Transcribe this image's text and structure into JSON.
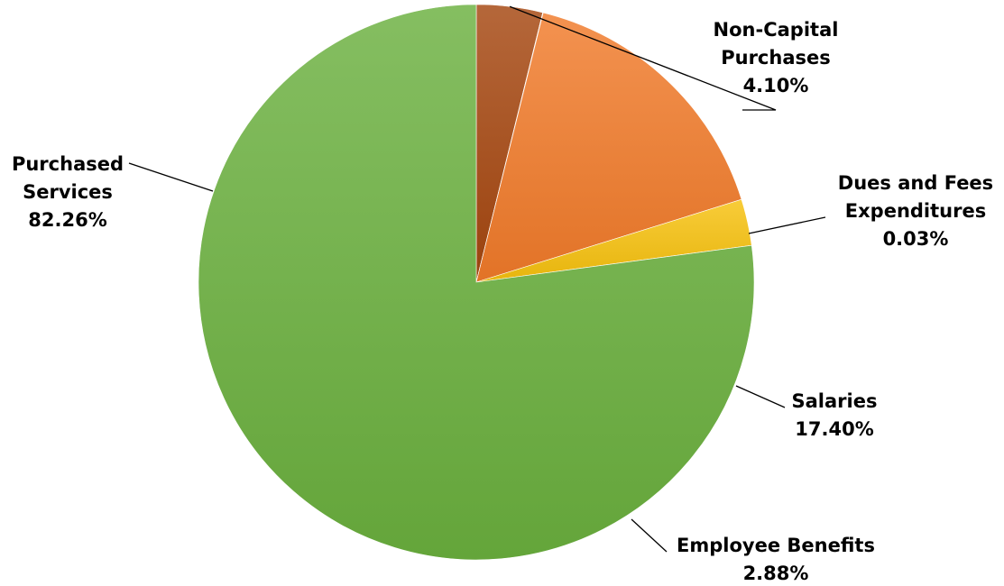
{
  "chart_data": {
    "type": "pie",
    "title": "",
    "start": "12 o'clock, clockwise",
    "slices": [
      {
        "name": "Non-Capital Purchases",
        "label_lines": [
          "Non-Capital",
          "Purchases"
        ],
        "value": 4.1,
        "value_label": "4.10%",
        "color": "#a5460f"
      },
      {
        "name": "Dues and Fees Expenditures",
        "label_lines": [
          "Dues and Fees",
          "Expenditures"
        ],
        "value": 0.03,
        "value_label": "0.03%",
        "color": "#e8d0b0"
      },
      {
        "name": "Salaries",
        "label_lines": [
          "Salaries"
        ],
        "value": 17.4,
        "value_label": "17.40%",
        "color": "#f07a2a"
      },
      {
        "name": "Employee Benefits",
        "label_lines": [
          "Employee Benefits"
        ],
        "value": 2.88,
        "value_label": "2.88%",
        "color": "#f6c10e"
      },
      {
        "name": "Purchased Services",
        "label_lines": [
          "Purchased",
          "Services"
        ],
        "value": 82.26,
        "value_label": "82.26%",
        "color": "#6ab03e"
      }
    ],
    "legend": "none",
    "data_labels": "outside with leader lines"
  }
}
